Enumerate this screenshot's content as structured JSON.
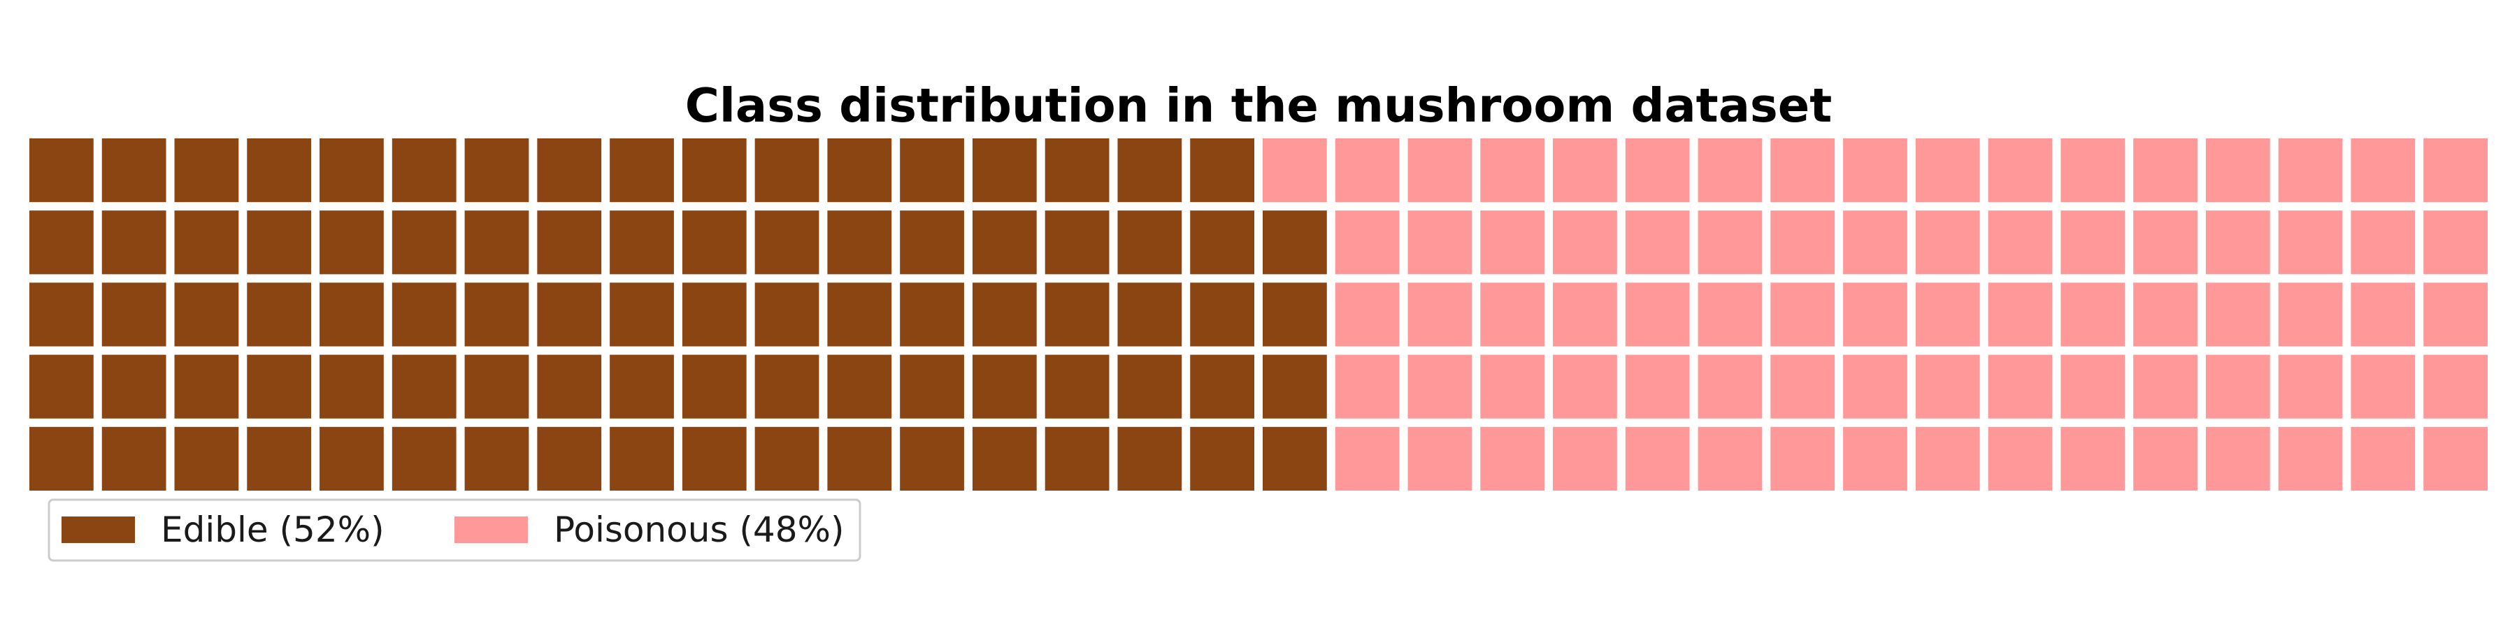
{
  "chart_data": {
    "type": "waffle",
    "title": "Class distribution in the mushroom dataset",
    "grid": {
      "rows": 5,
      "columns": 34
    },
    "series": [
      {
        "name": "Edible (52%)",
        "percent": 52,
        "cells": 89,
        "color": "#8B4513"
      },
      {
        "name": "Poisonous (48%)",
        "percent": 48,
        "cells": 81,
        "color": "#FF9999"
      }
    ],
    "legend": {
      "placement": "lower-left",
      "orientation": "horizontal"
    },
    "background": "#ffffff"
  }
}
